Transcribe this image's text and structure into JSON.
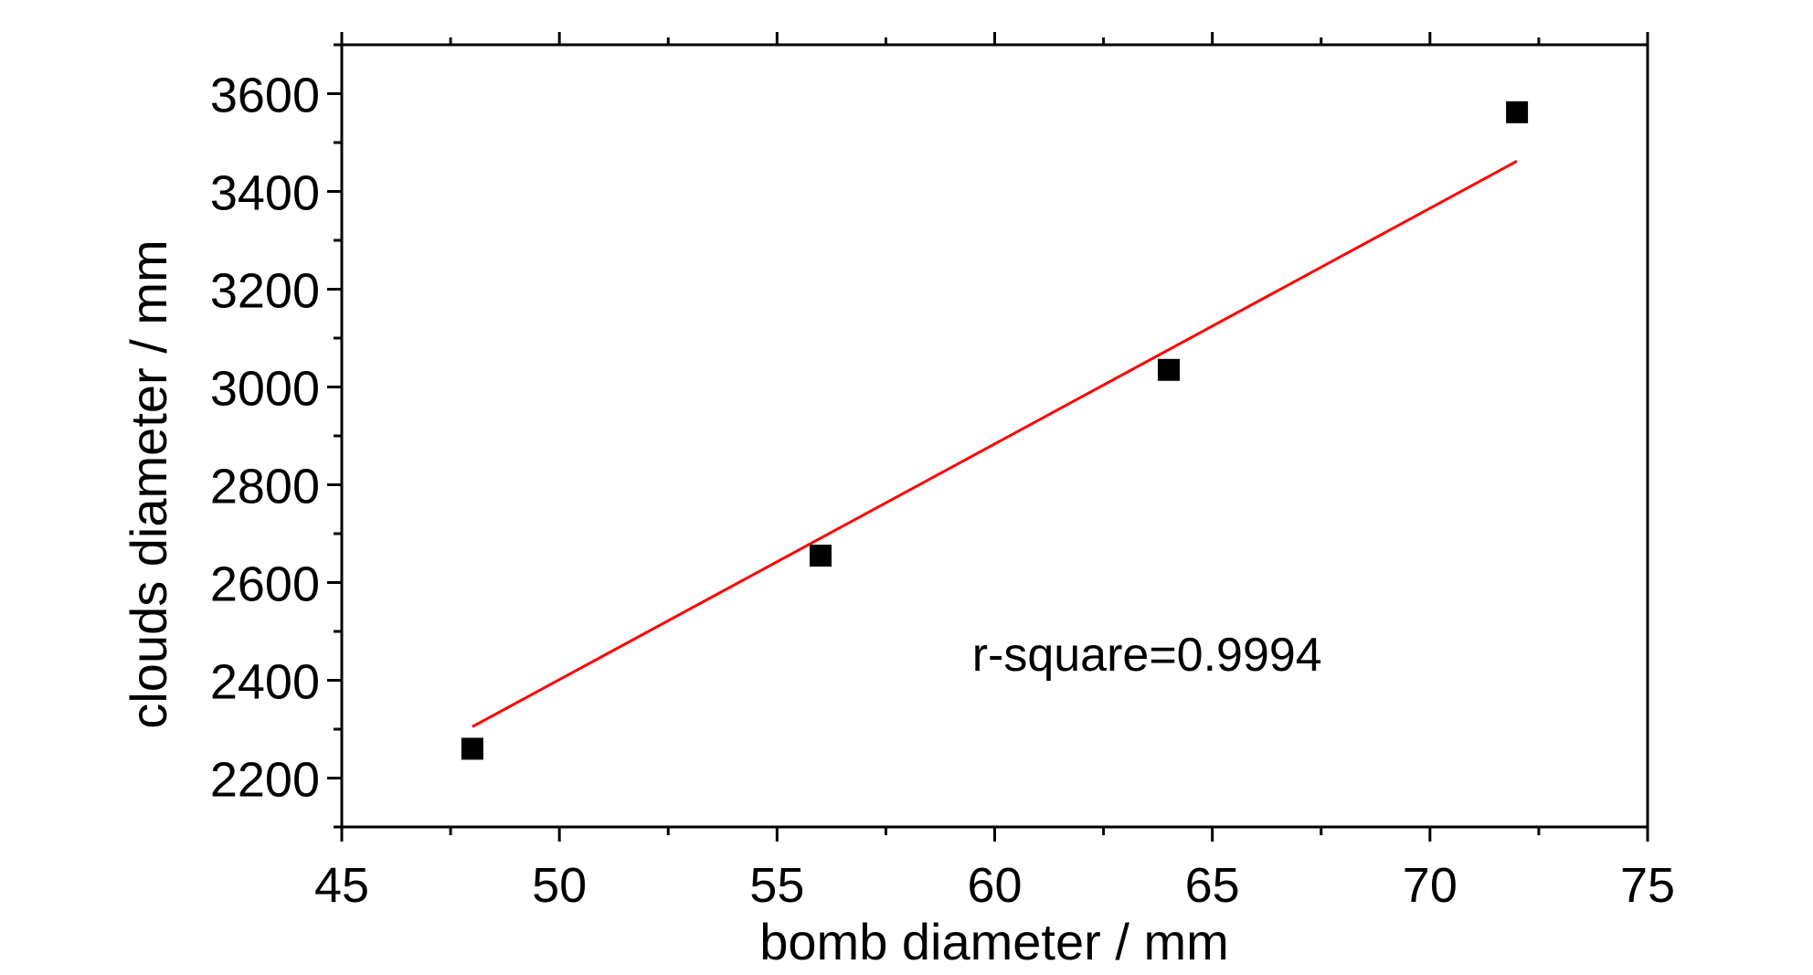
{
  "chart_data": {
    "type": "scatter",
    "title": "",
    "xlabel": "bomb diameter / mm",
    "ylabel": "clouds diameter / mm",
    "xlim": [
      45,
      75
    ],
    "ylim": [
      2100,
      3700
    ],
    "x_ticks": [
      45,
      50,
      55,
      60,
      65,
      70,
      75
    ],
    "y_ticks": [
      2200,
      2400,
      2600,
      2800,
      3000,
      3200,
      3400,
      3600
    ],
    "grid": false,
    "legend": "none",
    "series": [
      {
        "marker": "square",
        "color": "#000000",
        "points": [
          {
            "x": 48,
            "y": 2260
          },
          {
            "x": 56,
            "y": 2655
          },
          {
            "x": 64,
            "y": 3035
          },
          {
            "x": 72,
            "y": 3562
          }
        ]
      }
    ],
    "fit_line": {
      "color": "#ff0000",
      "points": [
        {
          "x": 48,
          "y": 2305
        },
        {
          "x": 72,
          "y": 3462
        }
      ]
    },
    "annotations": [
      {
        "text": "r-square=0.9994",
        "x": 63.5,
        "y": 2420
      }
    ]
  }
}
